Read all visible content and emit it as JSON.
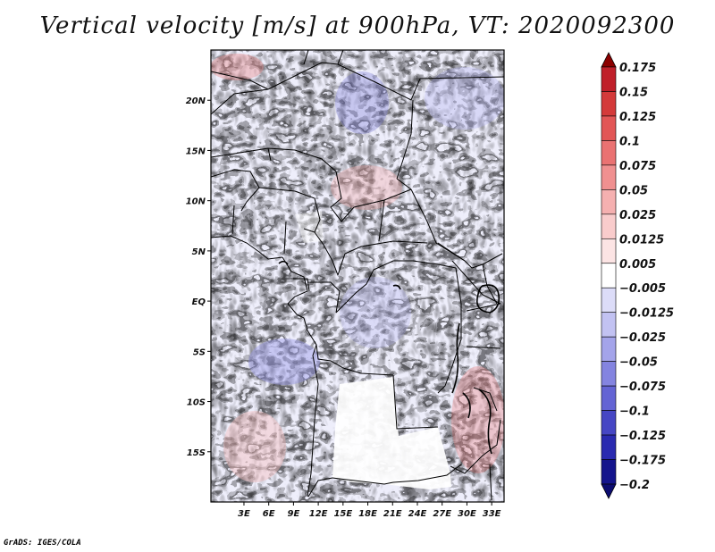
{
  "title": "Vertical velocity [m/s] at 900hPa, VT: 2020092300",
  "credit": "GrADS: IGES/COLA",
  "map": {
    "lon_range": [
      -1,
      34.5
    ],
    "lat_range": [
      -20,
      25
    ],
    "lon_ticks": [
      {
        "value": 3,
        "label": "3E"
      },
      {
        "value": 6,
        "label": "6E"
      },
      {
        "value": 9,
        "label": "9E"
      },
      {
        "value": 12,
        "label": "12E"
      },
      {
        "value": 15,
        "label": "15E"
      },
      {
        "value": 18,
        "label": "18E"
      },
      {
        "value": 21,
        "label": "21E"
      },
      {
        "value": 24,
        "label": "24E"
      },
      {
        "value": 27,
        "label": "27E"
      },
      {
        "value": 30,
        "label": "30E"
      },
      {
        "value": 33,
        "label": "33E"
      }
    ],
    "lat_ticks": [
      {
        "value": 20,
        "label": "20N"
      },
      {
        "value": 15,
        "label": "15N"
      },
      {
        "value": 10,
        "label": "10N"
      },
      {
        "value": 5,
        "label": "5N"
      },
      {
        "value": 0,
        "label": "EQ"
      },
      {
        "value": -5,
        "label": "5S"
      },
      {
        "value": -10,
        "label": "10S"
      },
      {
        "value": -15,
        "label": "15S"
      }
    ]
  },
  "colorbar": {
    "levels": [
      {
        "label": "0.175",
        "color": "#a50f15"
      },
      {
        "label": "0.15",
        "color": "#c0202a"
      },
      {
        "label": "0.125",
        "color": "#d43a3a"
      },
      {
        "label": "0.1",
        "color": "#e25656"
      },
      {
        "label": "0.075",
        "color": "#ea7272"
      },
      {
        "label": "0.05",
        "color": "#f09090"
      },
      {
        "label": "0.025",
        "color": "#f5b0b0"
      },
      {
        "label": "0.0125",
        "color": "#f9cccc"
      },
      {
        "label": "0.005",
        "color": "#fce4e4"
      },
      {
        "label": "−0.005",
        "color": "#ffffff"
      },
      {
        "label": "−0.0125",
        "color": "#dcdcf8"
      },
      {
        "label": "−0.025",
        "color": "#c2c2f2"
      },
      {
        "label": "−0.05",
        "color": "#a4a4ea"
      },
      {
        "label": "−0.075",
        "color": "#8484e0"
      },
      {
        "label": "−0.1",
        "color": "#6464d4"
      },
      {
        "label": "−0.125",
        "color": "#4646c4"
      },
      {
        "label": "−0.175",
        "color": "#2a2ab0"
      },
      {
        "label": "−0.2",
        "color": "#14148c"
      }
    ],
    "top_arrow_color": "#8b0000",
    "bottom_arrow_color": "#0c0c70"
  }
}
